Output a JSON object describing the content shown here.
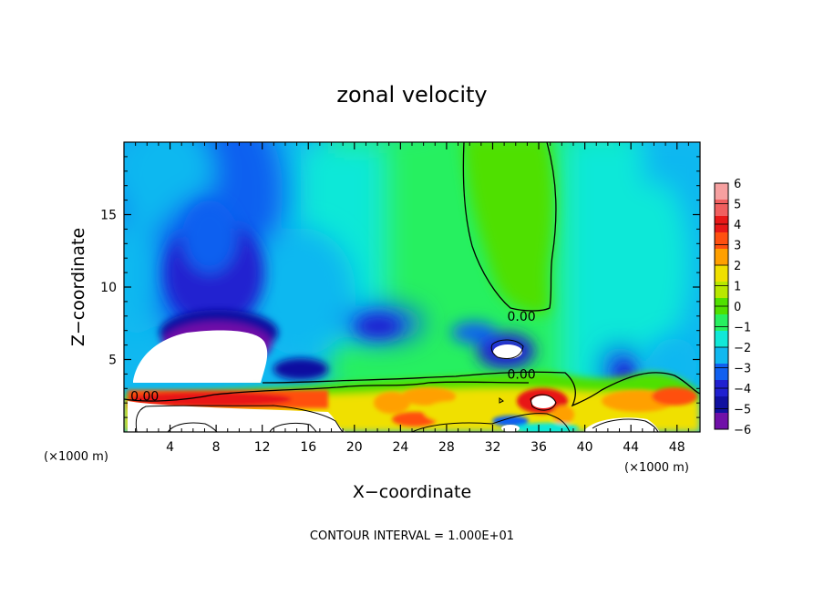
{
  "chart_data": {
    "type": "heatmap",
    "title": "zonal velocity",
    "xlabel": "X−coordinate",
    "ylabel": "Z−coordinate",
    "x_unit_label": "(×1000 m)",
    "x_unit_label_right": "(×1000 m)",
    "xlim": [
      0,
      50
    ],
    "ylim": [
      0,
      20
    ],
    "x_ticks": [
      4,
      8,
      12,
      16,
      20,
      24,
      28,
      32,
      36,
      40,
      44,
      48
    ],
    "x_tick_labels": [
      "4",
      "8",
      "12",
      "16",
      "20",
      "24",
      "28",
      "32",
      "36",
      "40",
      "44",
      "48"
    ],
    "y_ticks": [
      5,
      10,
      15
    ],
    "y_tick_labels": [
      "5",
      "10",
      "15"
    ],
    "footer": "CONTOUR INTERVAL = 1.000E+01",
    "colorbar": {
      "levels": [
        6,
        5,
        4,
        3,
        2,
        1,
        0,
        -1,
        -2,
        -3,
        -4,
        -5,
        -6
      ],
      "labels": [
        "6",
        "5",
        "4",
        "3",
        "2",
        "1",
        "0",
        "−1",
        "−2",
        "−3",
        "−4",
        "−5",
        "−6"
      ],
      "colors": [
        "#f6a0a0",
        "#f06060",
        "#e81818",
        "#ff5010",
        "#ffa000",
        "#f0e000",
        "#b8e800",
        "#50e000",
        "#28f060",
        "#10e8d8",
        "#10b8f0",
        "#1060f0",
        "#2020d0",
        "#1010a0",
        "#7010a8"
      ]
    },
    "contour_labels": [
      {
        "text": "0.00",
        "x": 34.5,
        "z": 8.0
      },
      {
        "text": "0.00",
        "x": 34.5,
        "z": 4.0
      },
      {
        "text": "0.00",
        "x": 1.8,
        "z": 2.5
      }
    ]
  }
}
